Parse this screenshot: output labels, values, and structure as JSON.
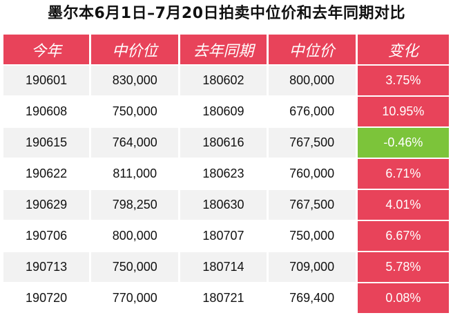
{
  "title": "墨尔本6月1日–7月20日拍卖中位价和去年同期对比",
  "colors": {
    "header_bg": "#e8435a",
    "increase": "#e8435a",
    "decrease": "#7cc43a",
    "row_shade": "#f2f2f2"
  },
  "table": {
    "headers": [
      "今年",
      "中价位",
      "去年同期",
      "中位价",
      "变化"
    ],
    "rows": [
      {
        "this_year": "190601",
        "median_this": "830,000",
        "last_year": "180602",
        "median_last": "800,000",
        "change": "3.75%",
        "direction": "up"
      },
      {
        "this_year": "190608",
        "median_this": "750,000",
        "last_year": "180609",
        "median_last": "676,000",
        "change": "10.95%",
        "direction": "up"
      },
      {
        "this_year": "190615",
        "median_this": "764,000",
        "last_year": "180616",
        "median_last": "767,500",
        "change": "-0.46%",
        "direction": "down"
      },
      {
        "this_year": "190622",
        "median_this": "811,000",
        "last_year": "180623",
        "median_last": "760,000",
        "change": "6.71%",
        "direction": "up"
      },
      {
        "this_year": "190629",
        "median_this": "798,250",
        "last_year": "180630",
        "median_last": "767,500",
        "change": "4.01%",
        "direction": "up"
      },
      {
        "this_year": "190706",
        "median_this": "800,000",
        "last_year": "180707",
        "median_last": "750,000",
        "change": "6.67%",
        "direction": "up"
      },
      {
        "this_year": "190713",
        "median_this": "750,000",
        "last_year": "180714",
        "median_last": "709,000",
        "change": "5.78%",
        "direction": "up"
      },
      {
        "this_year": "190720",
        "median_this": "770,000",
        "last_year": "180721",
        "median_last": "769,400",
        "change": "0.08%",
        "direction": "up"
      }
    ]
  }
}
